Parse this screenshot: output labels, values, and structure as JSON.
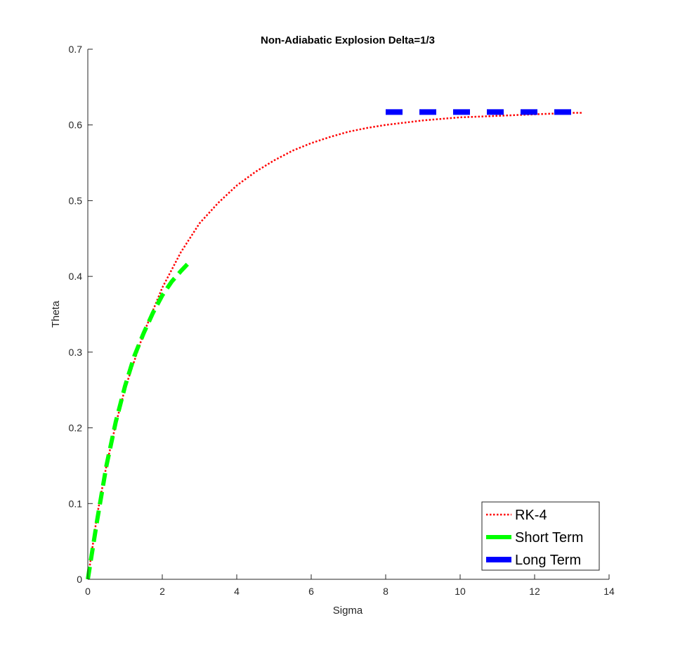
{
  "chart_data": {
    "type": "line",
    "title": "Non-Adiabatic Explosion Delta=1/3",
    "xlabel": "Sigma",
    "ylabel": "Theta",
    "xlim": [
      0,
      14
    ],
    "ylim": [
      0,
      0.7
    ],
    "xticks": [
      "0",
      "2",
      "4",
      "6",
      "8",
      "10",
      "12",
      "14"
    ],
    "yticks": [
      "0",
      "0.1",
      "0.2",
      "0.3",
      "0.4",
      "0.5",
      "0.6",
      "0.7"
    ],
    "grid": false,
    "legend_position": "bottom-right",
    "series": [
      {
        "name": "RK-4",
        "color": "#ff0000",
        "style": "dotted",
        "x": [
          0,
          0.25,
          0.5,
          0.75,
          1,
          1.5,
          2,
          2.5,
          3,
          3.5,
          4,
          4.5,
          5,
          5.5,
          6,
          6.5,
          7,
          7.5,
          8,
          8.5,
          9,
          9.5,
          10,
          10.5,
          11,
          11.5,
          12,
          12.5,
          13,
          13.3
        ],
        "y": [
          0,
          0.085,
          0.15,
          0.205,
          0.252,
          0.325,
          0.385,
          0.432,
          0.47,
          0.497,
          0.52,
          0.538,
          0.553,
          0.566,
          0.576,
          0.584,
          0.591,
          0.596,
          0.6,
          0.603,
          0.606,
          0.608,
          0.61,
          0.611,
          0.612,
          0.613,
          0.614,
          0.615,
          0.616,
          0.616
        ]
      },
      {
        "name": "Short Term",
        "color": "#00ff00",
        "style": "dashed",
        "x": [
          0,
          0.25,
          0.5,
          0.75,
          1,
          1.25,
          1.5,
          1.75,
          2,
          2.25,
          2.5,
          2.75
        ],
        "y": [
          0,
          0.078,
          0.15,
          0.208,
          0.255,
          0.295,
          0.325,
          0.352,
          0.375,
          0.393,
          0.407,
          0.42
        ]
      },
      {
        "name": "Long Term",
        "color": "#0000ff",
        "style": "dashed",
        "x": [
          8,
          13.3
        ],
        "y": [
          0.617,
          0.617
        ]
      }
    ]
  }
}
